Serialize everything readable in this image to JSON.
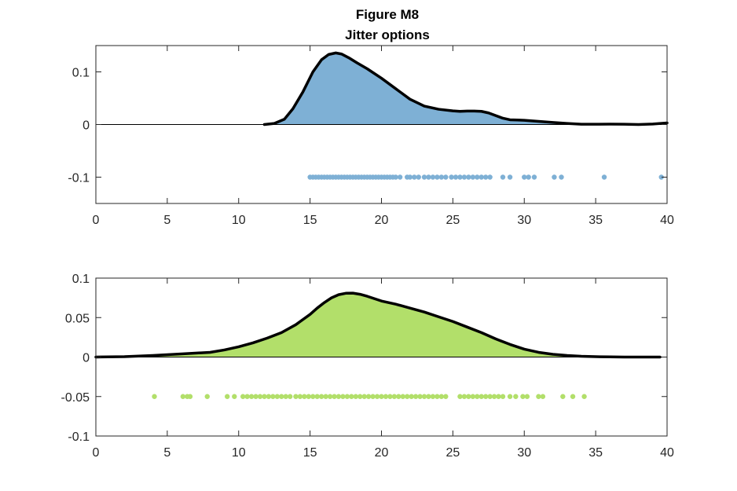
{
  "figure": {
    "title": "Figure M8",
    "subtitle": "Jitter options"
  },
  "chart_data": [
    {
      "type": "area",
      "fill_color": "#7eb0d5",
      "line_color": "#000000",
      "marker_color": "#7eb0d5",
      "grid": false,
      "xlim": [
        0,
        40
      ],
      "ylim": [
        -0.15,
        0.15
      ],
      "xticks": [
        "0",
        "5",
        "10",
        "15",
        "20",
        "25",
        "30",
        "35",
        "40"
      ],
      "yticks": [
        "0.1",
        "0",
        "-0.1"
      ],
      "ytick_values": [
        0.1,
        0,
        -0.1
      ],
      "x": [
        11.8,
        12.5,
        13.2,
        13.8,
        14.5,
        15.2,
        15.8,
        16.3,
        16.8,
        17.2,
        17.7,
        18.3,
        19.0,
        20.0,
        21.0,
        22.0,
        23.0,
        24.0,
        25.0,
        25.5,
        26.0,
        26.5,
        27.0,
        27.5,
        28.0,
        28.5,
        29.0,
        29.5,
        30.0,
        31.0,
        32.0,
        33.0,
        34.0,
        35.0,
        36.0,
        37.0,
        38.0,
        39.0,
        40.0
      ],
      "density": [
        0.0,
        0.002,
        0.01,
        0.03,
        0.062,
        0.1,
        0.123,
        0.133,
        0.136,
        0.134,
        0.127,
        0.117,
        0.106,
        0.088,
        0.068,
        0.048,
        0.035,
        0.029,
        0.026,
        0.025,
        0.0255,
        0.0255,
        0.025,
        0.022,
        0.017,
        0.012,
        0.009,
        0.0085,
        0.008,
        0.006,
        0.004,
        0.002,
        0.0005,
        0.0005,
        0.0008,
        0.0005,
        0.0,
        0.001,
        0.003
      ],
      "jitter_y": -0.1,
      "points_x": [
        15.0,
        15.2,
        15.4,
        15.6,
        15.8,
        16.0,
        16.2,
        16.4,
        16.6,
        16.8,
        17.0,
        17.2,
        17.4,
        17.6,
        17.8,
        18.0,
        18.2,
        18.4,
        18.6,
        18.8,
        19.0,
        19.2,
        19.4,
        19.6,
        19.8,
        20.0,
        20.2,
        20.4,
        20.6,
        20.8,
        21.0,
        21.3,
        21.8,
        22.0,
        22.3,
        22.6,
        23.0,
        23.3,
        23.6,
        23.9,
        24.2,
        24.5,
        24.9,
        25.2,
        25.5,
        25.8,
        26.1,
        26.4,
        26.7,
        27.0,
        27.3,
        27.6,
        28.5,
        29.0,
        30.0,
        30.3,
        30.7,
        32.1,
        32.6,
        35.6,
        39.6
      ]
    },
    {
      "type": "area",
      "fill_color": "#b2df6a",
      "line_color": "#000000",
      "marker_color": "#b2df6a",
      "grid": false,
      "xlim": [
        0,
        40
      ],
      "ylim": [
        -0.1,
        0.1
      ],
      "xticks": [
        "0",
        "5",
        "10",
        "15",
        "20",
        "25",
        "30",
        "35",
        "40"
      ],
      "yticks": [
        "0.1",
        "0.05",
        "0",
        "-0.05",
        "-0.1"
      ],
      "ytick_values": [
        0.1,
        0.05,
        0,
        -0.05,
        -0.1
      ],
      "x": [
        0,
        2,
        4,
        6,
        8,
        9,
        10,
        11,
        12,
        13,
        14,
        15,
        15.5,
        16,
        16.5,
        17,
        17.5,
        18,
        18.5,
        19,
        19.5,
        20,
        21,
        22,
        23,
        24,
        25,
        26,
        27,
        28,
        29,
        30,
        31,
        32,
        33,
        34,
        35,
        36,
        37,
        38,
        39.5
      ],
      "density": [
        0.0,
        0.0005,
        0.002,
        0.004,
        0.006,
        0.009,
        0.013,
        0.018,
        0.024,
        0.031,
        0.041,
        0.054,
        0.062,
        0.069,
        0.075,
        0.079,
        0.0808,
        0.081,
        0.0795,
        0.077,
        0.074,
        0.071,
        0.067,
        0.062,
        0.057,
        0.051,
        0.045,
        0.038,
        0.031,
        0.023,
        0.016,
        0.01,
        0.006,
        0.0035,
        0.002,
        0.001,
        0.0005,
        0.0002,
        0.0,
        0.0,
        0.0
      ],
      "jitter_y": -0.05,
      "points_x": [
        4.1,
        6.1,
        6.4,
        6.6,
        7.8,
        9.2,
        9.7,
        10.3,
        10.6,
        10.9,
        11.2,
        11.5,
        11.8,
        12.1,
        12.4,
        12.7,
        13.0,
        13.3,
        13.6,
        14.0,
        14.3,
        14.6,
        14.9,
        15.2,
        15.5,
        15.8,
        16.1,
        16.4,
        16.7,
        17.0,
        17.3,
        17.6,
        17.9,
        18.2,
        18.5,
        18.8,
        19.1,
        19.4,
        19.7,
        20.0,
        20.3,
        20.6,
        20.9,
        21.2,
        21.5,
        21.8,
        22.1,
        22.4,
        22.7,
        23.0,
        23.3,
        23.6,
        23.9,
        24.2,
        24.5,
        25.5,
        25.8,
        26.1,
        26.4,
        26.7,
        27.0,
        27.3,
        27.6,
        27.9,
        28.2,
        28.5,
        29.0,
        29.4,
        29.9,
        30.2,
        31.0,
        31.3,
        32.7,
        33.4,
        34.2
      ]
    }
  ]
}
